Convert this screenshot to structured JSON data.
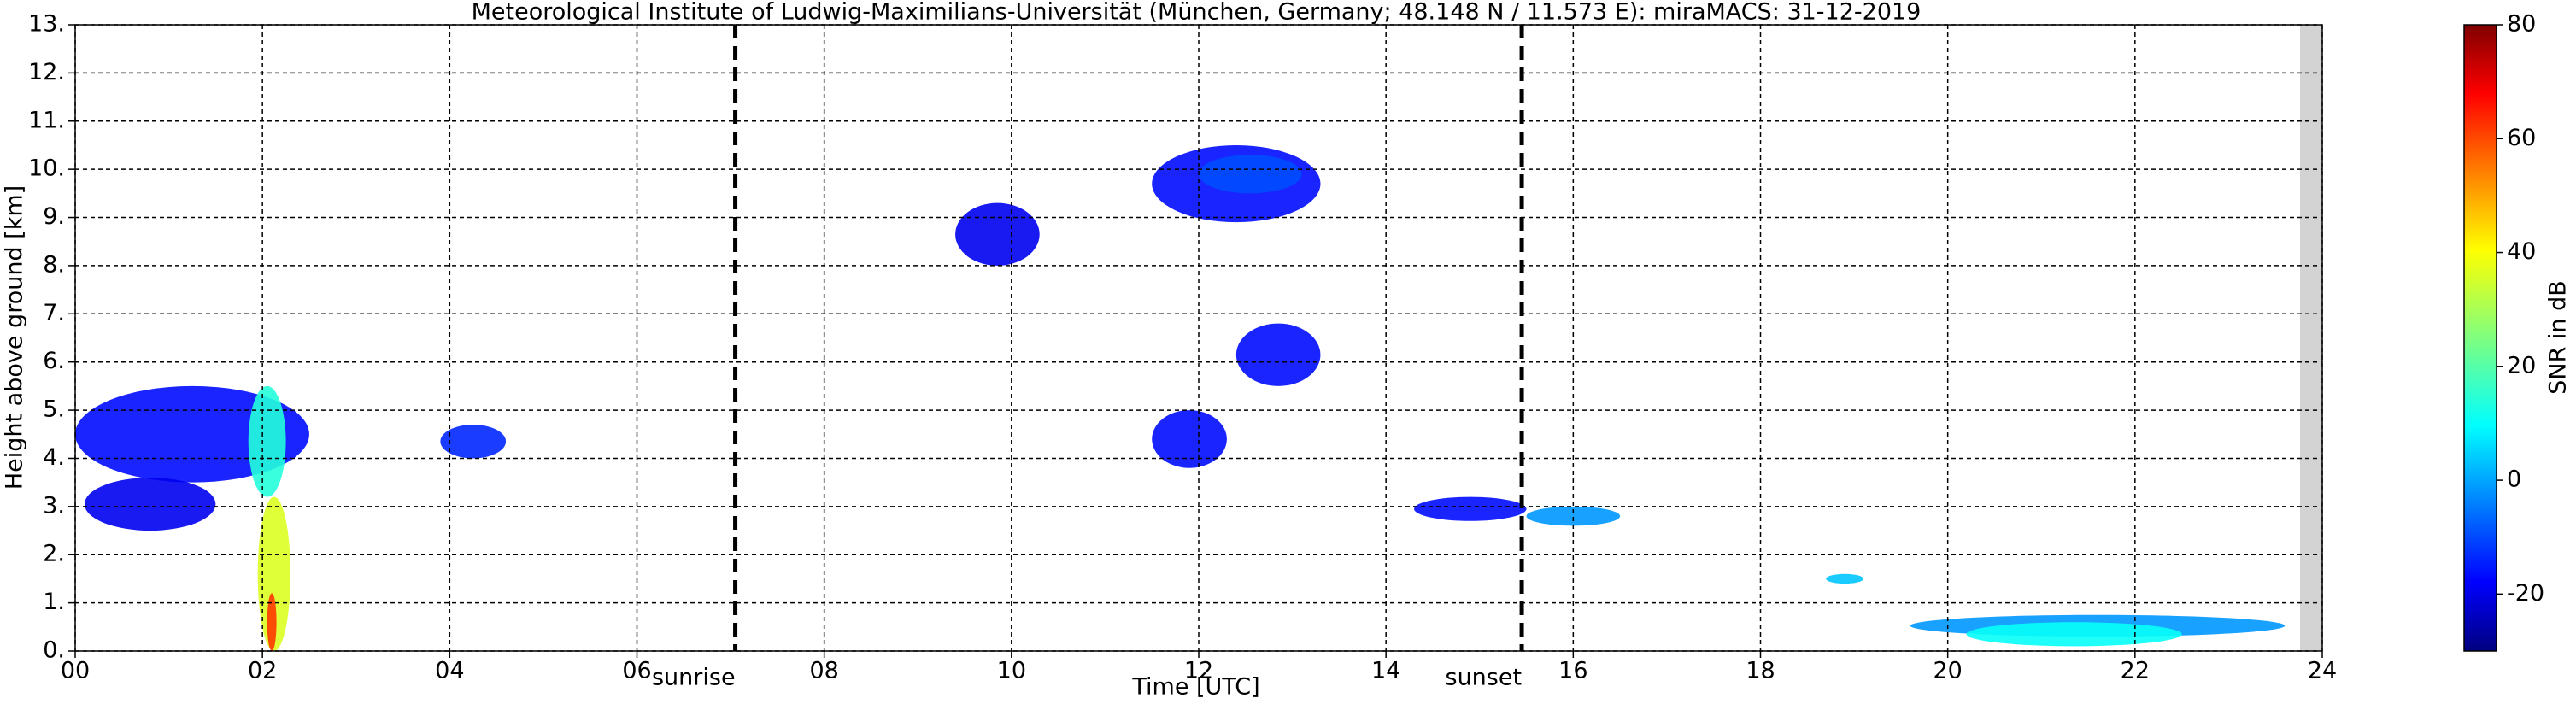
{
  "chart_data": {
    "type": "radar-echo",
    "title": "Meteorological Institute of Ludwig-Maximilians-Universität (München, Germany; 48.148 N / 11.573 E):    miraMACS: 31-12-2019",
    "x_label": "Time [UTC]",
    "y_label": "Height above ground [km]",
    "colorbar_label": "SNR in dB",
    "xlim": [
      0,
      24
    ],
    "ylim": [
      0,
      13
    ],
    "clim": [
      -30,
      80
    ],
    "xticks": [
      {
        "value": 0,
        "label": "00"
      },
      {
        "value": 2,
        "label": "02"
      },
      {
        "value": 4,
        "label": "04"
      },
      {
        "value": 6,
        "label": "06"
      },
      {
        "value": 8,
        "label": "08"
      },
      {
        "value": 10,
        "label": "10"
      },
      {
        "value": 12,
        "label": "12"
      },
      {
        "value": 14,
        "label": "14"
      },
      {
        "value": 16,
        "label": "16"
      },
      {
        "value": 18,
        "label": "18"
      },
      {
        "value": 20,
        "label": "20"
      },
      {
        "value": 22,
        "label": "22"
      },
      {
        "value": 24,
        "label": "24"
      }
    ],
    "yticks": [
      {
        "value": 0,
        "label": "0."
      },
      {
        "value": 1,
        "label": "1."
      },
      {
        "value": 2,
        "label": "2."
      },
      {
        "value": 3,
        "label": "3."
      },
      {
        "value": 4,
        "label": "4."
      },
      {
        "value": 5,
        "label": "5."
      },
      {
        "value": 6,
        "label": "6."
      },
      {
        "value": 7,
        "label": "7."
      },
      {
        "value": 8,
        "label": "8."
      },
      {
        "value": 9,
        "label": "9."
      },
      {
        "value": 10,
        "label": "10."
      },
      {
        "value": 11,
        "label": "11."
      },
      {
        "value": 12,
        "label": "12."
      },
      {
        "value": 13,
        "label": "13."
      }
    ],
    "cticks": [
      -20,
      0,
      20,
      40,
      60,
      80
    ],
    "grid": true,
    "annotations": [
      {
        "x": 7.05,
        "label": "sunrise"
      },
      {
        "x": 15.45,
        "label": "sunset"
      }
    ],
    "echoes": [
      {
        "t0": 0.0,
        "t1": 2.5,
        "h0": 3.5,
        "h1": 5.5,
        "snr": -15
      },
      {
        "t0": 0.1,
        "t1": 1.5,
        "h0": 2.5,
        "h1": 3.6,
        "snr": -18
      },
      {
        "t0": 1.85,
        "t1": 2.25,
        "h0": 3.2,
        "h1": 5.5,
        "snr": 15
      },
      {
        "t0": 1.95,
        "t1": 2.3,
        "h0": 0.0,
        "h1": 3.2,
        "snr": 35
      },
      {
        "t0": 2.05,
        "t1": 2.15,
        "h0": 0.0,
        "h1": 1.2,
        "snr": 60
      },
      {
        "t0": 3.9,
        "t1": 4.6,
        "h0": 4.0,
        "h1": 4.7,
        "snr": -12
      },
      {
        "t0": 9.4,
        "t1": 10.3,
        "h0": 8.0,
        "h1": 9.3,
        "snr": -18
      },
      {
        "t0": 11.5,
        "t1": 13.3,
        "h0": 8.9,
        "h1": 10.5,
        "snr": -15
      },
      {
        "t0": 12.0,
        "t1": 13.1,
        "h0": 9.5,
        "h1": 10.3,
        "snr": -8
      },
      {
        "t0": 11.5,
        "t1": 12.3,
        "h0": 3.8,
        "h1": 5.0,
        "snr": -15
      },
      {
        "t0": 12.4,
        "t1": 13.3,
        "h0": 5.5,
        "h1": 6.8,
        "snr": -15
      },
      {
        "t0": 14.3,
        "t1": 15.5,
        "h0": 2.7,
        "h1": 3.2,
        "snr": -15
      },
      {
        "t0": 15.5,
        "t1": 16.5,
        "h0": 2.6,
        "h1": 3.0,
        "snr": 0
      },
      {
        "t0": 18.7,
        "t1": 19.1,
        "h0": 1.4,
        "h1": 1.6,
        "snr": 5
      },
      {
        "t0": 19.6,
        "t1": 23.6,
        "h0": 0.3,
        "h1": 0.75,
        "snr": 0
      },
      {
        "t0": 20.2,
        "t1": 22.5,
        "h0": 0.1,
        "h1": 0.6,
        "snr": 12
      }
    ]
  }
}
